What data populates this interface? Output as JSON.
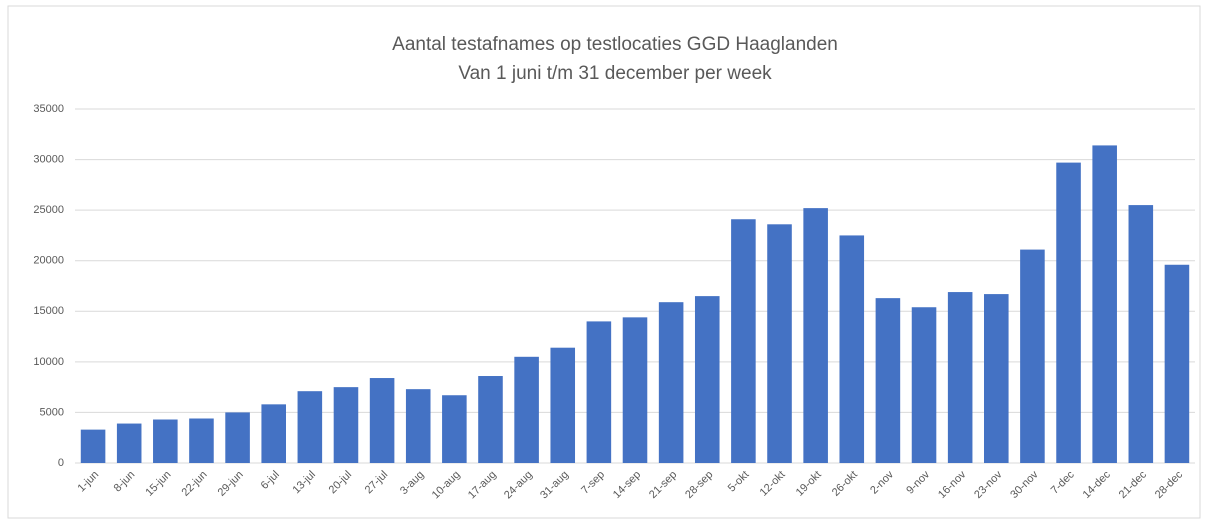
{
  "chart_data": {
    "type": "bar",
    "title": "Aantal testafnames op testlocaties GGD Haaglanden",
    "subtitle": "Van 1 juni t/m 31 december per week",
    "categories": [
      "1-jun",
      "8-jun",
      "15-jun",
      "22-jun",
      "29-jun",
      "6-jul",
      "13-jul",
      "20-jul",
      "27-jul",
      "3-aug",
      "10-aug",
      "17-aug",
      "24-aug",
      "31-aug",
      "7-sep",
      "14-sep",
      "21-sep",
      "28-sep",
      "5-okt",
      "12-okt",
      "19-okt",
      "26-okt",
      "2-nov",
      "9-nov",
      "16-nov",
      "23-nov",
      "30-nov",
      "7-dec",
      "14-dec",
      "21-dec",
      "28-dec"
    ],
    "values": [
      3300,
      3900,
      4300,
      4400,
      5000,
      5800,
      7100,
      7500,
      8400,
      7300,
      6700,
      8600,
      10500,
      11400,
      14000,
      14400,
      15900,
      16500,
      24100,
      23600,
      25200,
      22500,
      16300,
      15400,
      16900,
      16700,
      21100,
      29700,
      31400,
      25500,
      19600
    ],
    "color": "#4472c4",
    "ylim": [
      0,
      35000
    ],
    "yticks": [
      0,
      5000,
      10000,
      15000,
      20000,
      25000,
      30000,
      35000
    ],
    "grid": true
  }
}
